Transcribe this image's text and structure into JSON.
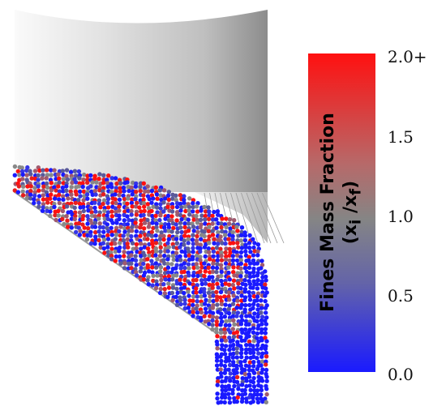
{
  "colorbar": {
    "title_line1": "Fines Mass Fraction",
    "title_line2_open": "(x",
    "title_line2_sub1": "i",
    "title_line2_mid": " /x",
    "title_line2_sub2": "f",
    "title_line2_close": ")",
    "ticks": [
      "2.0+",
      "1.5",
      "1.0",
      "0.5",
      "0.0"
    ],
    "range": [
      0.0,
      2.0
    ],
    "colors": {
      "high": "#ff1010",
      "mid": "#858585",
      "low": "#1a1aff"
    }
  }
}
